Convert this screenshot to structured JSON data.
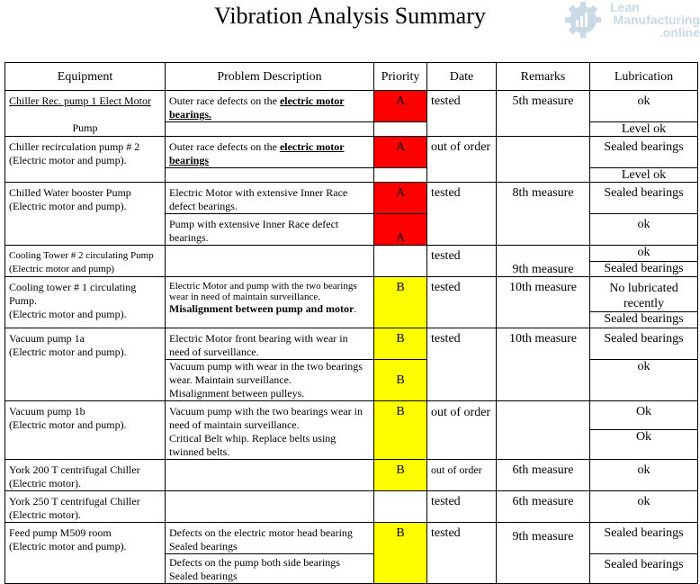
{
  "title": "Vibration Analysis Summary",
  "logo": {
    "line1": "Lean",
    "line2": "Manufacturing",
    "line3": ".online",
    "icon": "gear-chart-icon",
    "color": "#c9d9e6"
  },
  "colors": {
    "priority_a": "#ff0000",
    "priority_b": "#ffff00"
  },
  "headers": {
    "equipment": "Equipment",
    "problem": "Problem Description",
    "priority": "Priority",
    "date": "Date",
    "remarks": "Remarks",
    "lubrication": "Lubrication"
  },
  "rows": [
    {
      "equipment_l1": "Chiller Rec. pump 1 Elect Motor",
      "equipment_l2": "Pump",
      "problem_a": "Outer race defects on the ",
      "problem_b": "electric motor bearings.",
      "priority": "A",
      "date": "tested",
      "remarks": "5th measure",
      "lub1": "ok",
      "lub2": "Level ok"
    },
    {
      "equipment_l1": "Chiller recirculation pump # 2",
      "equipment_l2": "(Electric motor and pump).",
      "problem_a": "Outer race defects on the ",
      "problem_b": "electric motor",
      "problem_c": "bearings",
      "priority": "A",
      "date": "out of order",
      "remarks": "",
      "lub1": "Sealed bearings",
      "lub2": "Level ok"
    },
    {
      "equipment_l1": "Chilled Water booster  Pump",
      "equipment_l2": "(Electric motor and pump).",
      "problem1": "Electric Motor  with extensive Inner Race defect bearings.",
      "problem2": "Pump with extensive Inner Race defect bearings.",
      "priority1": "A",
      "priority2": "A",
      "date": "tested",
      "remarks": "8th measure",
      "lub1": "Sealed bearings",
      "lub2": "ok"
    },
    {
      "equipment_l1": "Cooling Tower # 2 circulating Pump",
      "equipment_l2": "(Electric motor and pump)",
      "problem": "",
      "priority": "",
      "date": "tested",
      "remarks": "9th measure",
      "lub1": "ok",
      "lub2": "Sealed bearings"
    },
    {
      "equipment_l1": "Cooling tower # 1 circulating Pump.",
      "equipment_l2": "(Electric motor and pump).",
      "problem_small": "Electric Motor and pump with the two bearings wear in need of maintain surveillance.",
      "problem_bold": "Misalignment between pump and motor",
      "problem_end": ".",
      "priority": "B",
      "date": "tested",
      "remarks": "10th measure",
      "lub1": "No lubricated recently",
      "lub2": "Sealed bearings"
    },
    {
      "equipment_l1": "Vacuum pump 1a",
      "equipment_l2": "(Electric motor and pump).",
      "problem1": "Electric Motor front bearing with wear in need of surveillance.",
      "problem2": "Vacuum pump with wear in the two bearings wear. Maintain surveillance.",
      "problem3": "Misalignment between pulleys.",
      "priority1": "B",
      "priority2": "B",
      "date": "tested",
      "remarks": "10th measure",
      "lub1": "Sealed bearings",
      "lub2": "ok"
    },
    {
      "equipment_l1": "Vacuum pump 1b",
      "equipment_l2": "(Electric motor and pump).",
      "problem1": "Vacuum pump with the two bearings wear in need of maintain surveillance.",
      "problem2": "Critical Belt whip. Replace belts using twinned belts.",
      "priority": "B",
      "date": "out of order",
      "remarks": "",
      "lub1": "Ok",
      "lub2": "Ok"
    },
    {
      "equipment_l1": "York 200 T centrifugal Chiller",
      "equipment_l2": "(Electric motor).",
      "problem": "",
      "priority": "B",
      "date": "out of order",
      "remarks": "6th measure",
      "lub": "ok"
    },
    {
      "equipment_l1": "York 250 T centrifugal Chiller",
      "equipment_l2": "(Electric motor).",
      "problem": "",
      "priority": "",
      "date": "tested",
      "remarks": "6th measure",
      "lub": "ok"
    },
    {
      "equipment_l1": "Feed  pump  M509  room",
      "equipment_l2": "(Electric motor and pump).",
      "problem1": "Defects on the electric motor head bearing Sealed bearings",
      "problem2": "Defects on the pump both side bearings Sealed bearings",
      "priority": "B",
      "date": "tested",
      "remarks": "9th measure",
      "lub1": "Sealed bearings",
      "lub2": "Sealed bearings"
    }
  ]
}
